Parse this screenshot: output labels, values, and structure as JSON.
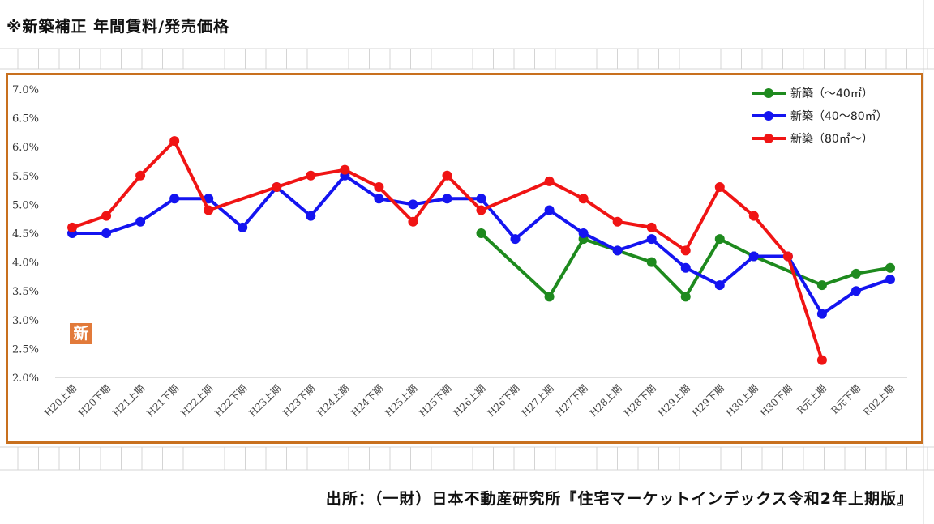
{
  "page": {
    "title": "※新築補正 年間賃料/発売価格",
    "source": "出所：（一財）日本不動産研究所『住宅マーケットインデックス令和2年上期版』",
    "badge_char": "新"
  },
  "colors": {
    "frame": "#c8701e",
    "series": [
      "#1e8a1e",
      "#1414f0",
      "#f01414"
    ]
  },
  "chart_data": {
    "type": "line",
    "title": "",
    "xlabel": "",
    "ylabel": "",
    "ylim": [
      2.0,
      7.0
    ],
    "yticks": [
      "2.0%",
      "2.5%",
      "3.0%",
      "3.5%",
      "4.0%",
      "4.5%",
      "5.0%",
      "5.5%",
      "6.0%",
      "6.5%",
      "7.0%"
    ],
    "categories": [
      "H20上期",
      "H20下期",
      "H21上期",
      "H21下期",
      "H22上期",
      "H22下期",
      "H23上期",
      "H23下期",
      "H24上期",
      "H24下期",
      "H25上期",
      "H25下期",
      "H26上期",
      "H26下期",
      "H27上期",
      "H27下期",
      "H28上期",
      "H28下期",
      "H29上期",
      "H29下期",
      "H30上期",
      "H30下期",
      "R元上期",
      "R元下期",
      "R02上期"
    ],
    "legend_position": "top-right",
    "grid": false,
    "series": [
      {
        "name": "新築（～40㎡）",
        "values": [
          null,
          null,
          null,
          null,
          null,
          null,
          null,
          null,
          null,
          null,
          null,
          null,
          4.5,
          null,
          3.4,
          4.4,
          4.2,
          4.0,
          3.4,
          4.4,
          4.1,
          null,
          3.6,
          3.8,
          3.9
        ]
      },
      {
        "name": "新築（40～80㎡）",
        "values": [
          4.5,
          4.5,
          4.7,
          5.1,
          5.1,
          4.6,
          5.3,
          4.8,
          5.5,
          5.1,
          5.0,
          5.1,
          5.1,
          4.4,
          4.9,
          4.5,
          4.2,
          4.4,
          3.9,
          3.6,
          4.1,
          4.1,
          3.1,
          3.5,
          3.7
        ]
      },
      {
        "name": "新築（80㎡～）",
        "values": [
          4.6,
          4.8,
          5.5,
          6.1,
          4.9,
          null,
          5.3,
          5.5,
          5.6,
          5.3,
          4.7,
          5.5,
          4.9,
          null,
          5.4,
          5.1,
          4.7,
          4.6,
          4.2,
          5.3,
          4.8,
          4.1,
          2.3,
          null,
          null
        ]
      }
    ]
  }
}
